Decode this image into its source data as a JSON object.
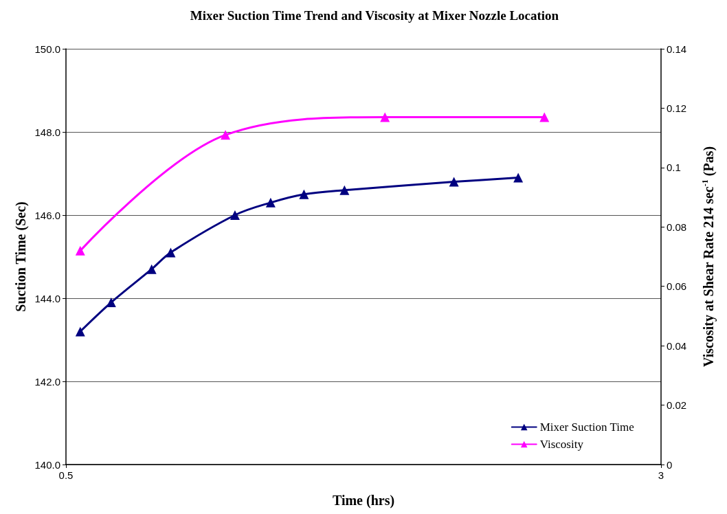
{
  "chart_data": {
    "type": "line",
    "title": "Mixer Suction Time Trend and Viscosity at Mixer Nozzle Location",
    "xlabel": "Time (hrs)",
    "ylabel": "Suction Time (Sec)",
    "y2label": "Viscosity at Shear Rate 214 sec$^{-1}$ (Pas)",
    "xlim": [
      0.5,
      3
    ],
    "xticks": [
      0.5,
      3
    ],
    "ylim": [
      140,
      150
    ],
    "yticks": [
      {
        "value": 140,
        "label": "140.0"
      },
      {
        "value": 142,
        "label": "142.0"
      },
      {
        "value": 144,
        "label": "144.0"
      },
      {
        "value": 146,
        "label": "146.0"
      },
      {
        "value": 148,
        "label": "148.0"
      },
      {
        "value": 150,
        "label": "150.0"
      }
    ],
    "y2lim": [
      0,
      0.14
    ],
    "y2ticks": [
      0,
      0.02,
      0.04,
      0.06,
      0.08,
      0.1,
      0.12,
      0.14
    ],
    "grid": "y",
    "legend": "bottom right",
    "marker": "triangle",
    "line_style": "solid",
    "series": [
      {
        "name": "Mixer Suction Time",
        "color": "#000080",
        "x": [
          0.56,
          0.69,
          0.86,
          0.94,
          1.21,
          1.36,
          1.5,
          1.67,
          2.13,
          2.4
        ],
        "values": [
          143.2,
          143.9,
          144.7,
          145.1,
          146.0,
          146.3,
          146.5,
          146.6,
          146.8,
          146.9
        ]
      },
      {
        "name": "Viscosity",
        "color": "#ff00ff",
        "axis": "y2",
        "x": [
          0.56,
          1.17,
          1.84,
          2.51
        ],
        "values": [
          0.072,
          0.111,
          0.117,
          0.117
        ]
      }
    ]
  }
}
